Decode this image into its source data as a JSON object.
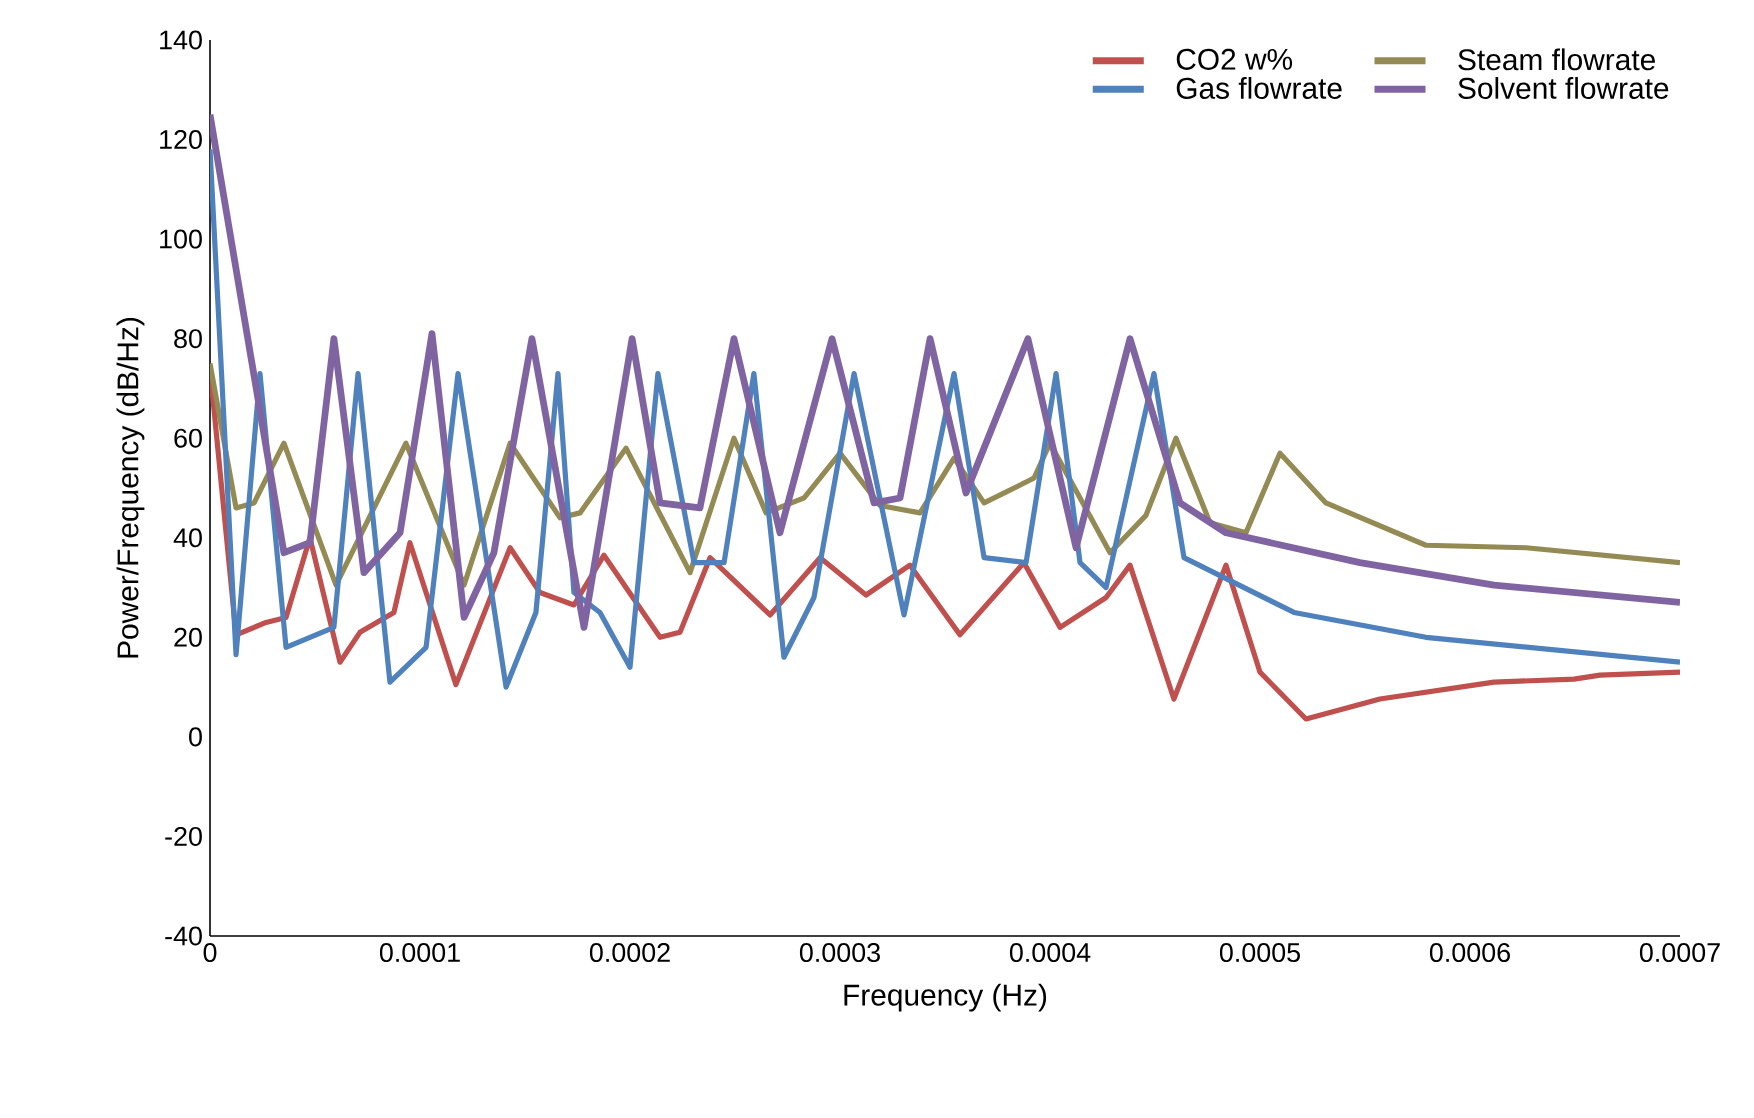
{
  "chart_data": {
    "type": "line",
    "xlabel": "Frequency (Hz)",
    "ylabel": "Power/Frequency (dB/Hz)",
    "xlim": [
      0,
      0.0007
    ],
    "ylim": [
      -40,
      140
    ],
    "xticks": [
      0,
      0.0001,
      0.0002,
      0.0003,
      0.0004,
      0.0005,
      0.0006,
      0.0007
    ],
    "yticks": [
      -40,
      -20,
      0,
      20,
      40,
      60,
      80,
      100,
      120,
      140
    ],
    "grid": false,
    "legend": "top right",
    "line_style": "solid",
    "series": [
      {
        "name": "CO2 w%",
        "color": "#c0504d",
        "x": [
          0,
          1.24e-05,
          2.67e-05,
          3.62e-05,
          4.76e-05,
          6.19e-05,
          7.14e-05,
          8.76e-05,
          9.52e-05,
          0.0001171,
          0.0001429,
          0.0001571,
          0.0001733,
          0.0001876,
          0.0002143,
          0.0002238,
          0.0002381,
          0.0002667,
          0.0002905,
          0.0003124,
          0.0003333,
          0.0003571,
          0.0003876,
          0.0004048,
          0.0004267,
          0.0004381,
          0.000459,
          0.0004838,
          0.0005,
          0.0005219,
          0.0005571,
          0.0006114,
          0.0006495,
          0.0006619,
          0.0007
        ],
        "values": [
          74,
          20.5,
          23,
          24,
          40,
          15,
          21,
          25,
          39,
          10.5,
          38,
          29,
          26.5,
          36.5,
          20,
          21,
          36,
          24.5,
          36,
          28.5,
          34.5,
          20.5,
          35,
          22,
          28,
          34.5,
          7.6,
          34.5,
          13,
          3.6,
          7.6,
          11,
          11.6,
          12.4,
          13
        ]
      },
      {
        "name": "Steam flowrate",
        "color": "#948a54",
        "x": [
          0,
          1.24e-05,
          2.1e-05,
          3.52e-05,
          6e-05,
          9.33e-05,
          0.000121,
          0.0001429,
          0.0001667,
          0.0001762,
          0.0001981,
          0.0002286,
          0.0002495,
          0.0002648,
          0.0002829,
          0.0003,
          0.000319,
          0.0003381,
          0.0003543,
          0.0003686,
          0.0003924,
          0.0004,
          0.0004286,
          0.0004457,
          0.00046,
          0.0004762,
          0.0004933,
          0.0005095,
          0.0005314,
          0.000579,
          0.0006267,
          0.0007
        ],
        "values": [
          75,
          46,
          47,
          59,
          30.5,
          59,
          30.5,
          59,
          44,
          45,
          58,
          33,
          60,
          45,
          48,
          57,
          46.5,
          45,
          56,
          47,
          52,
          59,
          37,
          44.5,
          60,
          43,
          41,
          57,
          47,
          38.5,
          38,
          35
        ]
      },
      {
        "name": "Gas flowrate",
        "color": "#4f81bd",
        "x": [
          0,
          1.24e-05,
          2.38e-05,
          3.62e-05,
          5.9e-05,
          7.05e-05,
          8.57e-05,
          0.0001029,
          0.0001181,
          0.000141,
          0.0001552,
          0.0001657,
          0.0001733,
          0.0001857,
          0.0002,
          0.0002133,
          0.0002305,
          0.0002448,
          0.000259,
          0.0002733,
          0.0002876,
          0.0003067,
          0.0003305,
          0.0003543,
          0.0003686,
          0.0003886,
          0.0004029,
          0.0004143,
          0.0004267,
          0.0004495,
          0.0004638,
          0.0005162,
          0.000579,
          0.0007
        ],
        "values": [
          118,
          16.5,
          73,
          18,
          22,
          73,
          11,
          18,
          73,
          10,
          25,
          73,
          29,
          25,
          14,
          73,
          35,
          35,
          73,
          16,
          28,
          73,
          24.5,
          73,
          36,
          35,
          73,
          35,
          30,
          73,
          36,
          25,
          20,
          15
        ]
      },
      {
        "name": "Solvent flowrate",
        "color": "#8064a2",
        "x": [
          0,
          3.52e-05,
          4.76e-05,
          5.9e-05,
          7.33e-05,
          9.05e-05,
          0.0001057,
          0.000121,
          0.0001352,
          0.0001533,
          0.0001781,
          0.000201,
          0.0002143,
          0.0002333,
          0.0002495,
          0.0002714,
          0.0002962,
          0.0003162,
          0.0003286,
          0.0003429,
          0.00036,
          0.0003895,
          0.0004124,
          0.0004381,
          0.0004619,
          0.0004838,
          0.0005476,
          0.0006114,
          0.0007
        ],
        "values": [
          125,
          37,
          39,
          80,
          33,
          41,
          81,
          24,
          37,
          80,
          22,
          80,
          47,
          46,
          80,
          41,
          80,
          47,
          48,
          80,
          49,
          80,
          38,
          80,
          47,
          41,
          35,
          30.5,
          27
        ]
      }
    ]
  }
}
